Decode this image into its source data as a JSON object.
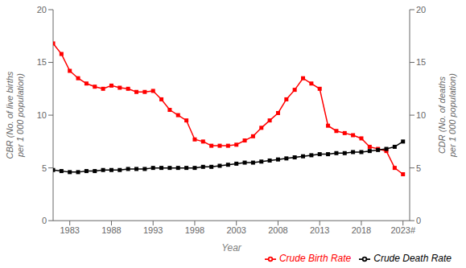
{
  "chart_data": {
    "type": "line",
    "x": [
      1981,
      1982,
      1983,
      1984,
      1985,
      1986,
      1987,
      1988,
      1989,
      1990,
      1991,
      1992,
      1993,
      1994,
      1995,
      1996,
      1997,
      1998,
      1999,
      2000,
      2001,
      2002,
      2003,
      2004,
      2005,
      2006,
      2007,
      2008,
      2009,
      2010,
      2011,
      2012,
      2013,
      2014,
      2015,
      2016,
      2017,
      2018,
      2019,
      2020,
      2021,
      2022,
      2023
    ],
    "xlabel": "Year",
    "ylabel": "CBR (No. of live births\nper 1 000 population)",
    "y2label": "CDR (No. of deaths\nper 1 000 population)",
    "xlim": [
      1981,
      2023.8
    ],
    "xticks": [
      1983,
      1988,
      1993,
      1998,
      2003,
      2008,
      2013,
      2018,
      {
        "value": 2023,
        "label": "2023#"
      }
    ],
    "ylim": [
      0,
      20
    ],
    "yticks": [
      0,
      5,
      10,
      15,
      20
    ],
    "y2lim": [
      0,
      20
    ],
    "y2ticks": [
      0,
      5,
      10,
      15,
      20
    ],
    "grid": false,
    "legend": "lower right",
    "series": [
      {
        "name": "Crude Birth Rate",
        "color": "#FF0000",
        "marker": "square",
        "axis": "y",
        "values": [
          16.8,
          15.8,
          14.2,
          13.5,
          13.0,
          12.7,
          12.5,
          12.8,
          12.6,
          12.5,
          12.2,
          12.2,
          12.3,
          11.5,
          10.5,
          10.0,
          9.5,
          7.7,
          7.5,
          7.1,
          7.1,
          7.1,
          7.2,
          7.6,
          8.0,
          8.8,
          9.5,
          10.2,
          11.5,
          12.4,
          13.5,
          13.0,
          12.5,
          9.0,
          8.5,
          8.3,
          8.1,
          7.8,
          7.0,
          6.8,
          6.6,
          5.0,
          4.4
        ]
      },
      {
        "name": "Crude Death Rate",
        "color": "#000000",
        "marker": "square",
        "axis": "y2",
        "values": [
          4.8,
          4.7,
          4.6,
          4.6,
          4.7,
          4.7,
          4.8,
          4.8,
          4.8,
          4.9,
          4.9,
          4.9,
          5.0,
          5.0,
          5.0,
          5.0,
          5.0,
          5.0,
          5.1,
          5.1,
          5.2,
          5.3,
          5.4,
          5.5,
          5.5,
          5.6,
          5.7,
          5.8,
          5.9,
          6.0,
          6.1,
          6.2,
          6.3,
          6.3,
          6.4,
          6.4,
          6.5,
          6.5,
          6.6,
          6.7,
          6.8,
          7.0,
          7.5
        ]
      }
    ]
  }
}
